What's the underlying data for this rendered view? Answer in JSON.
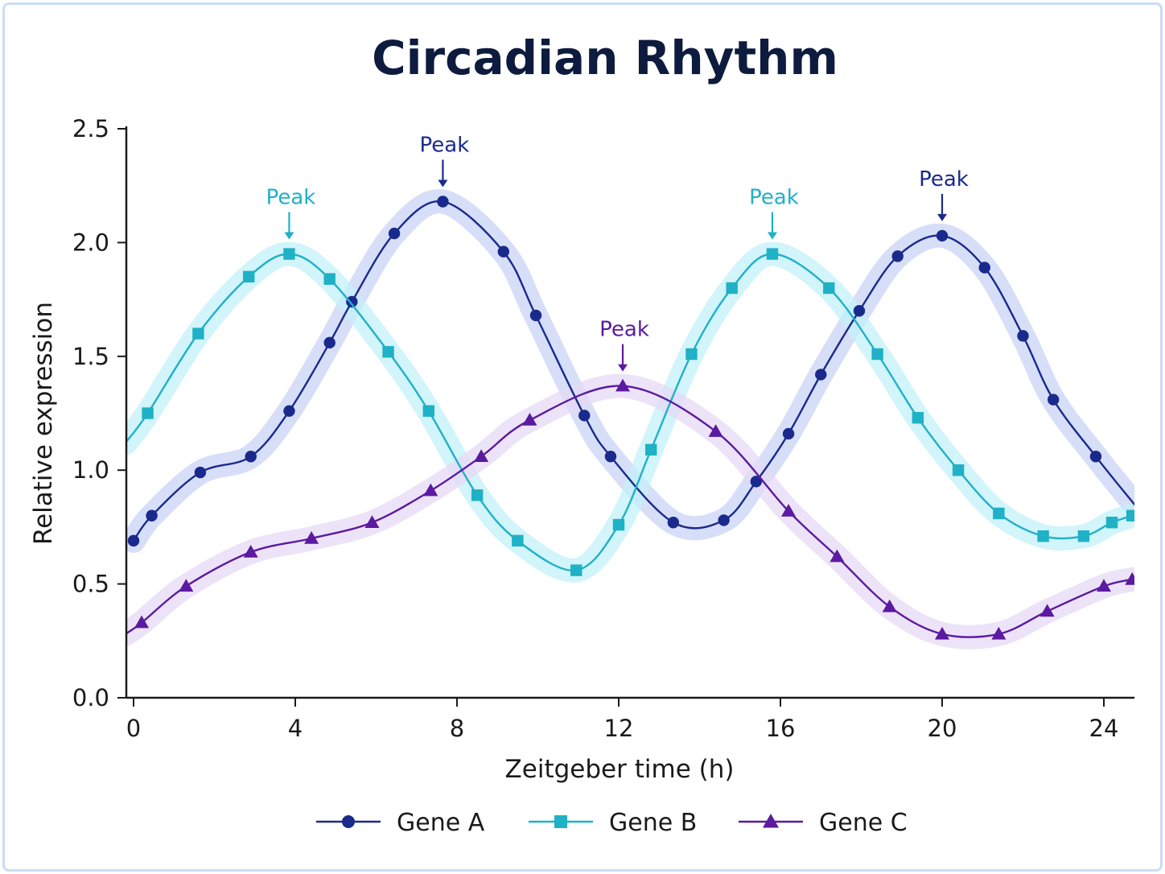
{
  "chart_data": {
    "type": "line",
    "title": "Circadian Rhythm",
    "xlabel": "Zeitgeber time (h)",
    "ylabel": "Relative expression",
    "xlim": [
      -0.2,
      24.7
    ],
    "ylim": [
      0,
      2.5
    ],
    "x_ticks": [
      0,
      4,
      8,
      12,
      16,
      20,
      24
    ],
    "x_tick_labels": [
      "0",
      "4",
      "8",
      "12",
      "16",
      "20",
      "24"
    ],
    "y_ticks": [
      0,
      0.5,
      1.0,
      1.5,
      2.0,
      2.5
    ],
    "y_tick_labels": [
      "0.0",
      "0.5",
      "1.0",
      "1.5",
      "2.0",
      "2.5"
    ],
    "grid": false,
    "legend_position": "bottom",
    "series": [
      {
        "name": "Gene A",
        "color": "#1a2a8c",
        "glow": "#c9d3f5",
        "marker": "circle",
        "points": [
          [
            0,
            0.69
          ],
          [
            0.45,
            0.8
          ],
          [
            1.65,
            0.99
          ],
          [
            2.9,
            1.06
          ],
          [
            3.85,
            1.26
          ],
          [
            4.85,
            1.56
          ],
          [
            5.4,
            1.74
          ],
          [
            6.45,
            2.04
          ],
          [
            7.65,
            2.18
          ],
          [
            9.15,
            1.96
          ],
          [
            9.95,
            1.68
          ],
          [
            11.15,
            1.24
          ],
          [
            11.8,
            1.06
          ],
          [
            13.35,
            0.77
          ],
          [
            14.6,
            0.78
          ],
          [
            15.4,
            0.95
          ],
          [
            16.2,
            1.16
          ],
          [
            17.0,
            1.42
          ],
          [
            17.95,
            1.7
          ],
          [
            18.9,
            1.94
          ],
          [
            20.0,
            2.03
          ],
          [
            21.05,
            1.89
          ],
          [
            22.0,
            1.59
          ],
          [
            22.75,
            1.31
          ],
          [
            23.8,
            1.06
          ],
          [
            24.8,
            0.84
          ]
        ]
      },
      {
        "name": "Gene B",
        "color": "#1fb1c6",
        "glow": "#c3f0fa",
        "marker": "square",
        "points": [
          [
            -0.2,
            1.12
          ],
          [
            0.35,
            1.25
          ],
          [
            1.6,
            1.6
          ],
          [
            2.85,
            1.85
          ],
          [
            3.85,
            1.95
          ],
          [
            4.85,
            1.84
          ],
          [
            6.3,
            1.52
          ],
          [
            7.3,
            1.26
          ],
          [
            8.5,
            0.89
          ],
          [
            9.5,
            0.69
          ],
          [
            10.95,
            0.56
          ],
          [
            12.0,
            0.76
          ],
          [
            12.8,
            1.09
          ],
          [
            13.8,
            1.51
          ],
          [
            14.8,
            1.8
          ],
          [
            15.8,
            1.95
          ],
          [
            17.2,
            1.8
          ],
          [
            18.4,
            1.51
          ],
          [
            19.4,
            1.23
          ],
          [
            20.4,
            1.0
          ],
          [
            21.4,
            0.81
          ],
          [
            22.5,
            0.71
          ],
          [
            23.5,
            0.71
          ],
          [
            24.2,
            0.77
          ],
          [
            24.7,
            0.8
          ]
        ]
      },
      {
        "name": "Gene C",
        "color": "#5b1aa0",
        "glow": "#e6d9f6",
        "marker": "triangle",
        "points": [
          [
            -0.2,
            0.28
          ],
          [
            0.2,
            0.33
          ],
          [
            1.3,
            0.49
          ],
          [
            2.9,
            0.64
          ],
          [
            4.4,
            0.7
          ],
          [
            5.9,
            0.77
          ],
          [
            7.35,
            0.91
          ],
          [
            8.6,
            1.06
          ],
          [
            9.8,
            1.22
          ],
          [
            12.1,
            1.37
          ],
          [
            14.4,
            1.17
          ],
          [
            16.2,
            0.82
          ],
          [
            17.4,
            0.62
          ],
          [
            18.7,
            0.4
          ],
          [
            20.0,
            0.28
          ],
          [
            21.4,
            0.28
          ],
          [
            22.6,
            0.38
          ],
          [
            24.0,
            0.49
          ],
          [
            24.7,
            0.52
          ]
        ]
      }
    ],
    "annotations": [
      {
        "text": "Peak",
        "x": 3.85,
        "y": 1.95,
        "series": "Gene B",
        "color": "#1fb1c6"
      },
      {
        "text": "Peak",
        "x": 7.65,
        "y": 2.18,
        "series": "Gene A",
        "color": "#1a2a8c"
      },
      {
        "text": "Peak",
        "x": 12.1,
        "y": 1.37,
        "series": "Gene C",
        "color": "#5b1aa0"
      },
      {
        "text": "Peak",
        "x": 15.8,
        "y": 1.95,
        "series": "Gene B",
        "color": "#1fb1c6"
      },
      {
        "text": "Peak",
        "x": 20.0,
        "y": 2.03,
        "series": "Gene A",
        "color": "#1a2a8c"
      }
    ]
  }
}
